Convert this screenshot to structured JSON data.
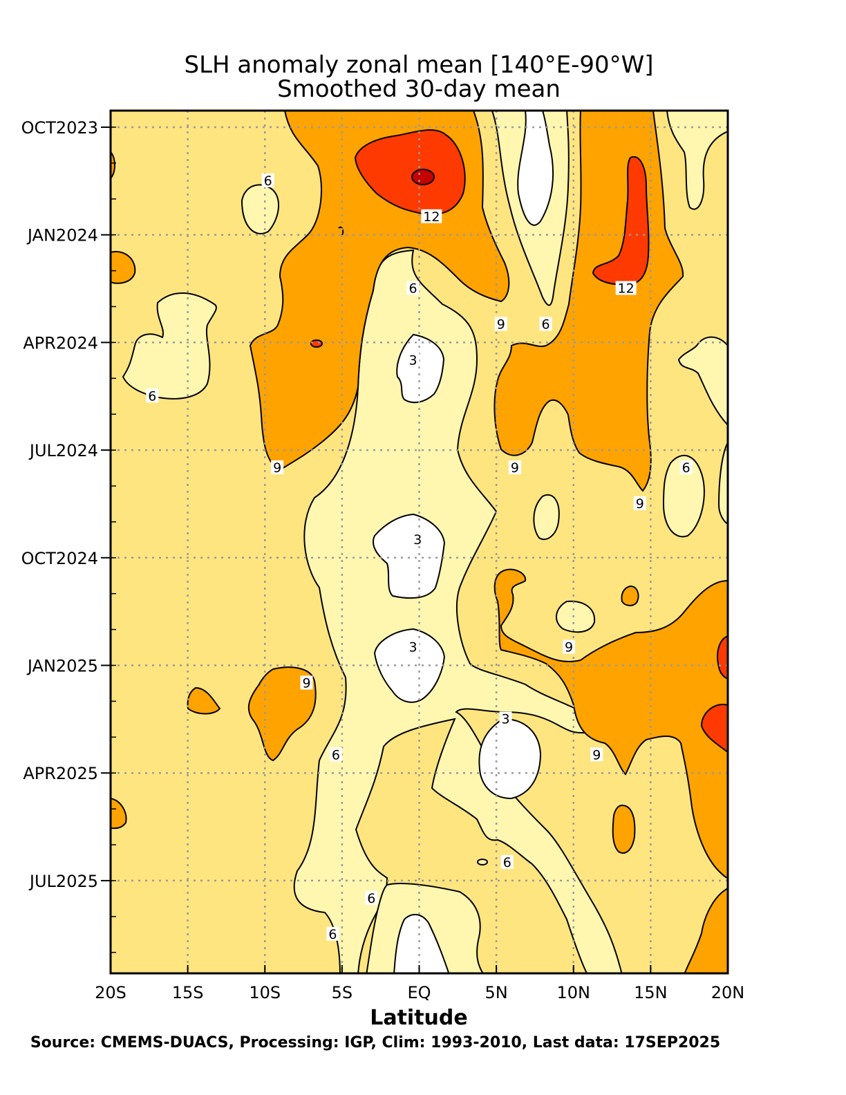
{
  "title_line1": "SLH anomaly zonal mean [140°E-90°W]",
  "title_line2": "Smoothed 30-day mean",
  "source": "Source: CMEMS-DUACS, Processing: IGP, Clim: 1993-2010, Last data: 17SEP2025",
  "chart_data": {
    "type": "heatmap",
    "title": "SLH anomaly zonal mean [140°E-90°W]",
    "subtitle": "Smoothed 30-day mean",
    "xlabel": "Latitude",
    "ylabel": "",
    "x_ticks": [
      "20S",
      "15S",
      "10S",
      "5S",
      "EQ",
      "5N",
      "10N",
      "15N",
      "20N"
    ],
    "x_range": [
      -20,
      20
    ],
    "y_ticks": [
      "OCT2023",
      "JAN2024",
      "APR2024",
      "JUL2024",
      "OCT2024",
      "JAN2025",
      "APR2025",
      "JUL2025"
    ],
    "y_range": [
      "SEP2023",
      "SEP2025"
    ],
    "grid": true,
    "contour_levels": [
      3,
      6,
      9,
      12,
      15
    ],
    "colors": {
      "lt3": "#ffffff",
      "3to6": "#fff7b0",
      "6to9": "#ffe580",
      "9to12": "#ffa300",
      "12to15": "#ff3a00",
      "gt15": "#c40000"
    },
    "contour_labels": [
      {
        "text": "6",
        "lat": -9.8,
        "date": "NOV2023"
      },
      {
        "text": "12",
        "lat": 0.8,
        "date": "DEC2023"
      },
      {
        "text": "6",
        "lat": -0.4,
        "date": "FEB2024"
      },
      {
        "text": "9",
        "lat": 5.3,
        "date": "MAR2024"
      },
      {
        "text": "6",
        "lat": 8.2,
        "date": "MAR2024"
      },
      {
        "text": "12",
        "lat": 13.4,
        "date": "FEB2024"
      },
      {
        "text": "3",
        "lat": -0.4,
        "date": "APR2024"
      },
      {
        "text": "6",
        "lat": -17.3,
        "date": "MAY2024"
      },
      {
        "text": "9",
        "lat": -9.2,
        "date": "JUL2024"
      },
      {
        "text": "9",
        "lat": 6.2,
        "date": "JUL2024"
      },
      {
        "text": "6",
        "lat": 17.3,
        "date": "JUL2024"
      },
      {
        "text": "9",
        "lat": 14.3,
        "date": "AUG2024"
      },
      {
        "text": "3",
        "lat": -0.1,
        "date": "SEP2024"
      },
      {
        "text": "3",
        "lat": -0.4,
        "date": "DEC2024"
      },
      {
        "text": "9",
        "lat": 9.7,
        "date": "DEC2024"
      },
      {
        "text": "9",
        "lat": -7.3,
        "date": "JAN2025"
      },
      {
        "text": "6",
        "lat": -5.4,
        "date": "MAR2025"
      },
      {
        "text": "3",
        "lat": 5.6,
        "date": "FEB2025"
      },
      {
        "text": "9",
        "lat": 11.5,
        "date": "MAR2025"
      },
      {
        "text": "6",
        "lat": 5.7,
        "date": "JUN2025"
      },
      {
        "text": "6",
        "lat": -3.1,
        "date": "JUL2025"
      },
      {
        "text": "6",
        "lat": -5.6,
        "date": "AUG2025"
      }
    ]
  }
}
